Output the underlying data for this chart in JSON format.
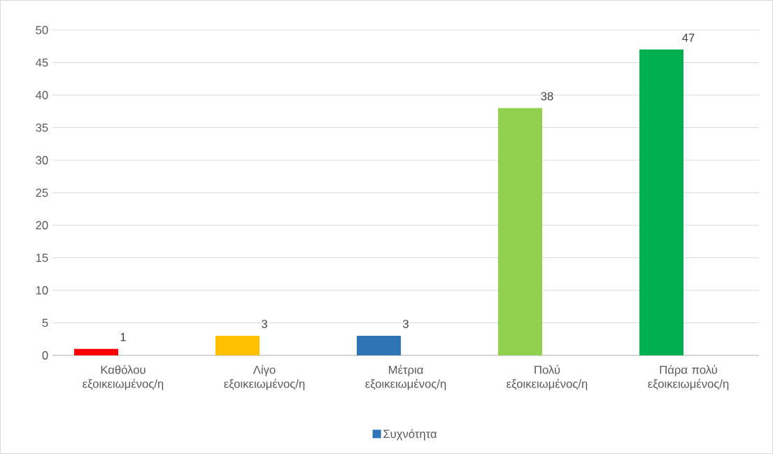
{
  "chart_data": {
    "type": "bar",
    "categories": [
      "Καθόλου εξοικειωμένος/η",
      "Λίγο εξοικειωμένος/η",
      "Μέτρια εξοικειωμένος/η",
      "Πολύ εξοικειωμένος/η",
      "Πάρα πολύ εξοικειωμένος/η"
    ],
    "series": [
      {
        "name": "Συχνότητα",
        "color": "#2e75b6",
        "colors": [
          "#ff0000",
          "#ffc000",
          "#2e75b6",
          "#92d050",
          "#00b050"
        ],
        "values": [
          1,
          3,
          3,
          38,
          47
        ]
      }
    ],
    "ylim": [
      0,
      50
    ],
    "yticks": [
      0,
      5,
      10,
      15,
      20,
      25,
      30,
      35,
      40,
      45,
      50
    ],
    "grid": "y",
    "legend": "bottom",
    "data_labels": true
  }
}
